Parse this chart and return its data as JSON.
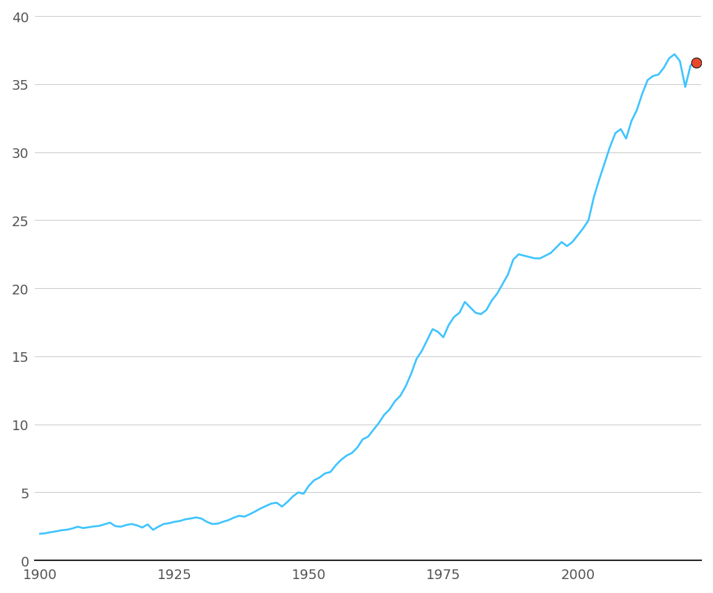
{
  "background_color": "#ffffff",
  "line_color": "#40C4FF",
  "marker_color": "#E8492A",
  "line_width": 2.0,
  "xlim": [
    1899,
    2023
  ],
  "ylim": [
    0,
    40
  ],
  "yticks": [
    0,
    5,
    10,
    15,
    20,
    25,
    30,
    35,
    40
  ],
  "xticks": [
    1900,
    1925,
    1950,
    1975,
    2000
  ],
  "years": [
    1900,
    1901,
    1902,
    1903,
    1904,
    1905,
    1906,
    1907,
    1908,
    1909,
    1910,
    1911,
    1912,
    1913,
    1914,
    1915,
    1916,
    1917,
    1918,
    1919,
    1920,
    1921,
    1922,
    1923,
    1924,
    1925,
    1926,
    1927,
    1928,
    1929,
    1930,
    1931,
    1932,
    1933,
    1934,
    1935,
    1936,
    1937,
    1938,
    1939,
    1940,
    1941,
    1942,
    1943,
    1944,
    1945,
    1946,
    1947,
    1948,
    1949,
    1950,
    1951,
    1952,
    1953,
    1954,
    1955,
    1956,
    1957,
    1958,
    1959,
    1960,
    1961,
    1962,
    1963,
    1964,
    1965,
    1966,
    1967,
    1968,
    1969,
    1970,
    1971,
    1972,
    1973,
    1974,
    1975,
    1976,
    1977,
    1978,
    1979,
    1980,
    1981,
    1982,
    1983,
    1984,
    1985,
    1986,
    1987,
    1988,
    1989,
    1990,
    1991,
    1992,
    1993,
    1994,
    1995,
    1996,
    1997,
    1998,
    1999,
    2000,
    2001,
    2002,
    2003,
    2004,
    2005,
    2006,
    2007,
    2008,
    2009,
    2010,
    2011,
    2012,
    2013,
    2014,
    2015,
    2016,
    2017,
    2018,
    2019,
    2020,
    2021,
    2022
  ],
  "values": [
    1.96,
    2.0,
    2.08,
    2.14,
    2.22,
    2.26,
    2.35,
    2.48,
    2.38,
    2.44,
    2.5,
    2.54,
    2.66,
    2.78,
    2.52,
    2.48,
    2.6,
    2.68,
    2.58,
    2.42,
    2.65,
    2.25,
    2.48,
    2.68,
    2.74,
    2.84,
    2.9,
    3.02,
    3.08,
    3.16,
    3.08,
    2.84,
    2.68,
    2.7,
    2.84,
    2.96,
    3.14,
    3.28,
    3.22,
    3.4,
    3.6,
    3.82,
    4.0,
    4.18,
    4.24,
    3.96,
    4.3,
    4.7,
    5.0,
    4.9,
    5.5,
    5.9,
    6.1,
    6.4,
    6.5,
    7.0,
    7.4,
    7.7,
    7.9,
    8.3,
    8.9,
    9.1,
    9.6,
    10.1,
    10.7,
    11.1,
    11.7,
    12.1,
    12.8,
    13.7,
    14.8,
    15.4,
    16.2,
    17.0,
    16.8,
    16.4,
    17.3,
    17.9,
    18.2,
    19.0,
    18.6,
    18.2,
    18.1,
    18.4,
    19.1,
    19.6,
    20.3,
    21.0,
    22.1,
    22.5,
    22.4,
    22.3,
    22.2,
    22.2,
    22.4,
    22.6,
    23.0,
    23.4,
    23.1,
    23.4,
    23.9,
    24.4,
    25.0,
    26.7,
    28.0,
    29.2,
    30.4,
    31.4,
    31.7,
    31.0,
    32.3,
    33.1,
    34.3,
    35.3,
    35.6,
    35.7,
    36.2,
    36.9,
    37.2,
    36.7,
    34.8,
    36.4,
    36.6
  ]
}
